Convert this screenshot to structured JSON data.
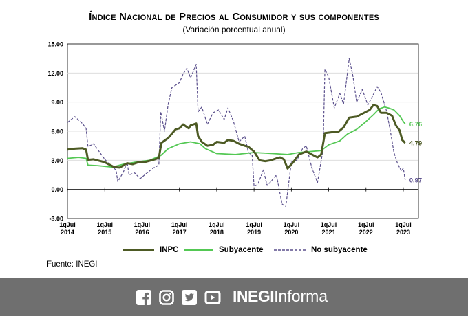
{
  "header": {
    "title": "Índice Nacional de Precios al Consumidor y sus componentes",
    "subtitle": "(Variación porcentual anual)"
  },
  "source_text": "Fuente: INEGI",
  "footer": {
    "brand_bold": "INEGI",
    "brand_light": "Informa",
    "icons": [
      "facebook-icon",
      "instagram-icon",
      "twitter-icon",
      "youtube-icon"
    ]
  },
  "chart_data": {
    "type": "line",
    "title": "Índice Nacional de Precios al Consumidor y sus componentes",
    "subtitle": "(Variación porcentual anual)",
    "ylim": [
      -3,
      15
    ],
    "yticks": [
      "15.00",
      "12.00",
      "9.00",
      "6.00",
      "3.00",
      "0.00",
      "-3.00"
    ],
    "xticks": [
      {
        "line1": "1qJul",
        "line2": "2014"
      },
      {
        "line1": "1qJul",
        "line2": "2015"
      },
      {
        "line1": "1qJul",
        "line2": "2016"
      },
      {
        "line1": "1qJul",
        "line2": "2017"
      },
      {
        "line1": "1qJul",
        "line2": "2018"
      },
      {
        "line1": "1qJul",
        "line2": "2019"
      },
      {
        "line1": "1qJul",
        "line2": "2020"
      },
      {
        "line1": "1qJul",
        "line2": "2021"
      },
      {
        "line1": "1qJul",
        "line2": "2022"
      },
      {
        "line1": "1qJul",
        "line2": "2023"
      }
    ],
    "x_unit": "years since 1qJul 2014",
    "grid": "horizontal",
    "legend_position": "bottom",
    "series": [
      {
        "name": "INPC",
        "color": "#4d5a24",
        "style": "solid-thick",
        "end_label": "4.79",
        "points": [
          [
            0,
            4.1
          ],
          [
            0.2,
            4.2
          ],
          [
            0.4,
            4.25
          ],
          [
            0.5,
            4.1
          ],
          [
            0.55,
            3.05
          ],
          [
            0.7,
            3.1
          ],
          [
            1.0,
            2.8
          ],
          [
            1.1,
            2.6
          ],
          [
            1.25,
            2.3
          ],
          [
            1.4,
            2.25
          ],
          [
            1.6,
            2.7
          ],
          [
            1.75,
            2.6
          ],
          [
            1.9,
            2.8
          ],
          [
            2.1,
            2.85
          ],
          [
            2.35,
            3.1
          ],
          [
            2.45,
            3.25
          ],
          [
            2.52,
            4.8
          ],
          [
            2.7,
            5.3
          ],
          [
            2.9,
            6.2
          ],
          [
            3.0,
            6.3
          ],
          [
            3.1,
            6.7
          ],
          [
            3.25,
            6.3
          ],
          [
            3.3,
            6.6
          ],
          [
            3.45,
            6.8
          ],
          [
            3.5,
            5.5
          ],
          [
            3.6,
            4.9
          ],
          [
            3.75,
            4.5
          ],
          [
            3.9,
            4.6
          ],
          [
            4.0,
            4.9
          ],
          [
            4.2,
            4.8
          ],
          [
            4.3,
            5.1
          ],
          [
            4.45,
            5.0
          ],
          [
            4.6,
            4.7
          ],
          [
            4.75,
            4.5
          ],
          [
            4.85,
            4.4
          ],
          [
            5.0,
            3.9
          ],
          [
            5.15,
            3.0
          ],
          [
            5.3,
            2.9
          ],
          [
            5.45,
            3.0
          ],
          [
            5.6,
            3.2
          ],
          [
            5.7,
            3.3
          ],
          [
            5.8,
            3.1
          ],
          [
            5.9,
            2.15
          ],
          [
            6.05,
            2.8
          ],
          [
            6.2,
            3.6
          ],
          [
            6.4,
            3.9
          ],
          [
            6.6,
            3.5
          ],
          [
            6.7,
            3.3
          ],
          [
            6.8,
            3.6
          ],
          [
            6.9,
            5.8
          ],
          [
            7.1,
            5.9
          ],
          [
            7.25,
            5.9
          ],
          [
            7.4,
            6.4
          ],
          [
            7.55,
            7.4
          ],
          [
            7.75,
            7.5
          ],
          [
            7.9,
            7.8
          ],
          [
            8.0,
            8.0
          ],
          [
            8.1,
            8.2
          ],
          [
            8.2,
            8.7
          ],
          [
            8.3,
            8.6
          ],
          [
            8.4,
            7.9
          ],
          [
            8.55,
            7.9
          ],
          [
            8.7,
            7.6
          ],
          [
            8.8,
            6.6
          ],
          [
            8.9,
            6.1
          ],
          [
            8.97,
            5.1
          ],
          [
            9.05,
            4.79
          ]
        ]
      },
      {
        "name": "Subyacente",
        "color": "#54c854",
        "style": "solid",
        "end_label": "6.76",
        "points": [
          [
            0,
            3.2
          ],
          [
            0.3,
            3.3
          ],
          [
            0.5,
            3.2
          ],
          [
            0.55,
            2.5
          ],
          [
            0.8,
            2.45
          ],
          [
            1.2,
            2.3
          ],
          [
            1.5,
            2.6
          ],
          [
            1.8,
            2.8
          ],
          [
            2.2,
            3.0
          ],
          [
            2.5,
            3.5
          ],
          [
            2.7,
            4.2
          ],
          [
            3.0,
            4.7
          ],
          [
            3.3,
            4.9
          ],
          [
            3.55,
            4.7
          ],
          [
            3.7,
            4.2
          ],
          [
            4.0,
            3.7
          ],
          [
            4.5,
            3.6
          ],
          [
            5.0,
            3.8
          ],
          [
            5.5,
            3.7
          ],
          [
            5.9,
            3.6
          ],
          [
            6.2,
            3.8
          ],
          [
            6.5,
            3.9
          ],
          [
            6.8,
            4.0
          ],
          [
            7.0,
            4.6
          ],
          [
            7.3,
            5.0
          ],
          [
            7.5,
            5.7
          ],
          [
            7.75,
            6.2
          ],
          [
            8.0,
            7.0
          ],
          [
            8.2,
            7.7
          ],
          [
            8.35,
            8.3
          ],
          [
            8.5,
            8.5
          ],
          [
            8.6,
            8.4
          ],
          [
            8.75,
            8.2
          ],
          [
            8.9,
            7.6
          ],
          [
            9.0,
            7.0
          ],
          [
            9.05,
            6.76
          ]
        ]
      },
      {
        "name": "No subyacente",
        "color": "#5a4f8c",
        "style": "dashed",
        "end_label": "0.97",
        "points": [
          [
            0,
            6.9
          ],
          [
            0.2,
            7.5
          ],
          [
            0.4,
            6.8
          ],
          [
            0.5,
            6.3
          ],
          [
            0.55,
            4.4
          ],
          [
            0.7,
            4.7
          ],
          [
            0.85,
            3.9
          ],
          [
            1.0,
            3.1
          ],
          [
            1.15,
            2.5
          ],
          [
            1.3,
            2.0
          ],
          [
            1.35,
            0.8
          ],
          [
            1.5,
            1.8
          ],
          [
            1.6,
            2.8
          ],
          [
            1.65,
            1.5
          ],
          [
            1.8,
            1.7
          ],
          [
            1.95,
            1.1
          ],
          [
            2.1,
            1.6
          ],
          [
            2.3,
            2.2
          ],
          [
            2.45,
            2.5
          ],
          [
            2.5,
            8.0
          ],
          [
            2.6,
            6.0
          ],
          [
            2.7,
            8.8
          ],
          [
            2.8,
            10.5
          ],
          [
            3.0,
            11.0
          ],
          [
            3.1,
            11.9
          ],
          [
            3.2,
            12.5
          ],
          [
            3.3,
            11.5
          ],
          [
            3.45,
            12.9
          ],
          [
            3.5,
            8.0
          ],
          [
            3.6,
            8.5
          ],
          [
            3.75,
            6.7
          ],
          [
            3.9,
            7.9
          ],
          [
            4.05,
            8.2
          ],
          [
            4.2,
            7.2
          ],
          [
            4.3,
            8.4
          ],
          [
            4.45,
            7.0
          ],
          [
            4.6,
            4.9
          ],
          [
            4.75,
            5.5
          ],
          [
            4.85,
            3.8
          ],
          [
            4.95,
            3.5
          ],
          [
            5.0,
            0.3
          ],
          [
            5.1,
            0.5
          ],
          [
            5.25,
            2.0
          ],
          [
            5.35,
            0.4
          ],
          [
            5.45,
            0.8
          ],
          [
            5.6,
            1.5
          ],
          [
            5.75,
            -1.5
          ],
          [
            5.85,
            -1.8
          ],
          [
            6.0,
            2.8
          ],
          [
            6.15,
            3.0
          ],
          [
            6.3,
            4.2
          ],
          [
            6.4,
            4.5
          ],
          [
            6.55,
            2.2
          ],
          [
            6.7,
            0.7
          ],
          [
            6.85,
            4.1
          ],
          [
            6.9,
            12.4
          ],
          [
            7.0,
            11.6
          ],
          [
            7.15,
            8.4
          ],
          [
            7.3,
            9.9
          ],
          [
            7.4,
            8.8
          ],
          [
            7.55,
            13.5
          ],
          [
            7.65,
            11.7
          ],
          [
            7.75,
            9.0
          ],
          [
            7.9,
            10.3
          ],
          [
            8.05,
            8.7
          ],
          [
            8.2,
            9.8
          ],
          [
            8.3,
            10.6
          ],
          [
            8.4,
            10.0
          ],
          [
            8.55,
            8.1
          ],
          [
            8.65,
            6.1
          ],
          [
            8.75,
            3.8
          ],
          [
            8.85,
            2.6
          ],
          [
            8.95,
            1.9
          ],
          [
            9.0,
            2.2
          ],
          [
            9.05,
            0.97
          ]
        ]
      }
    ]
  }
}
